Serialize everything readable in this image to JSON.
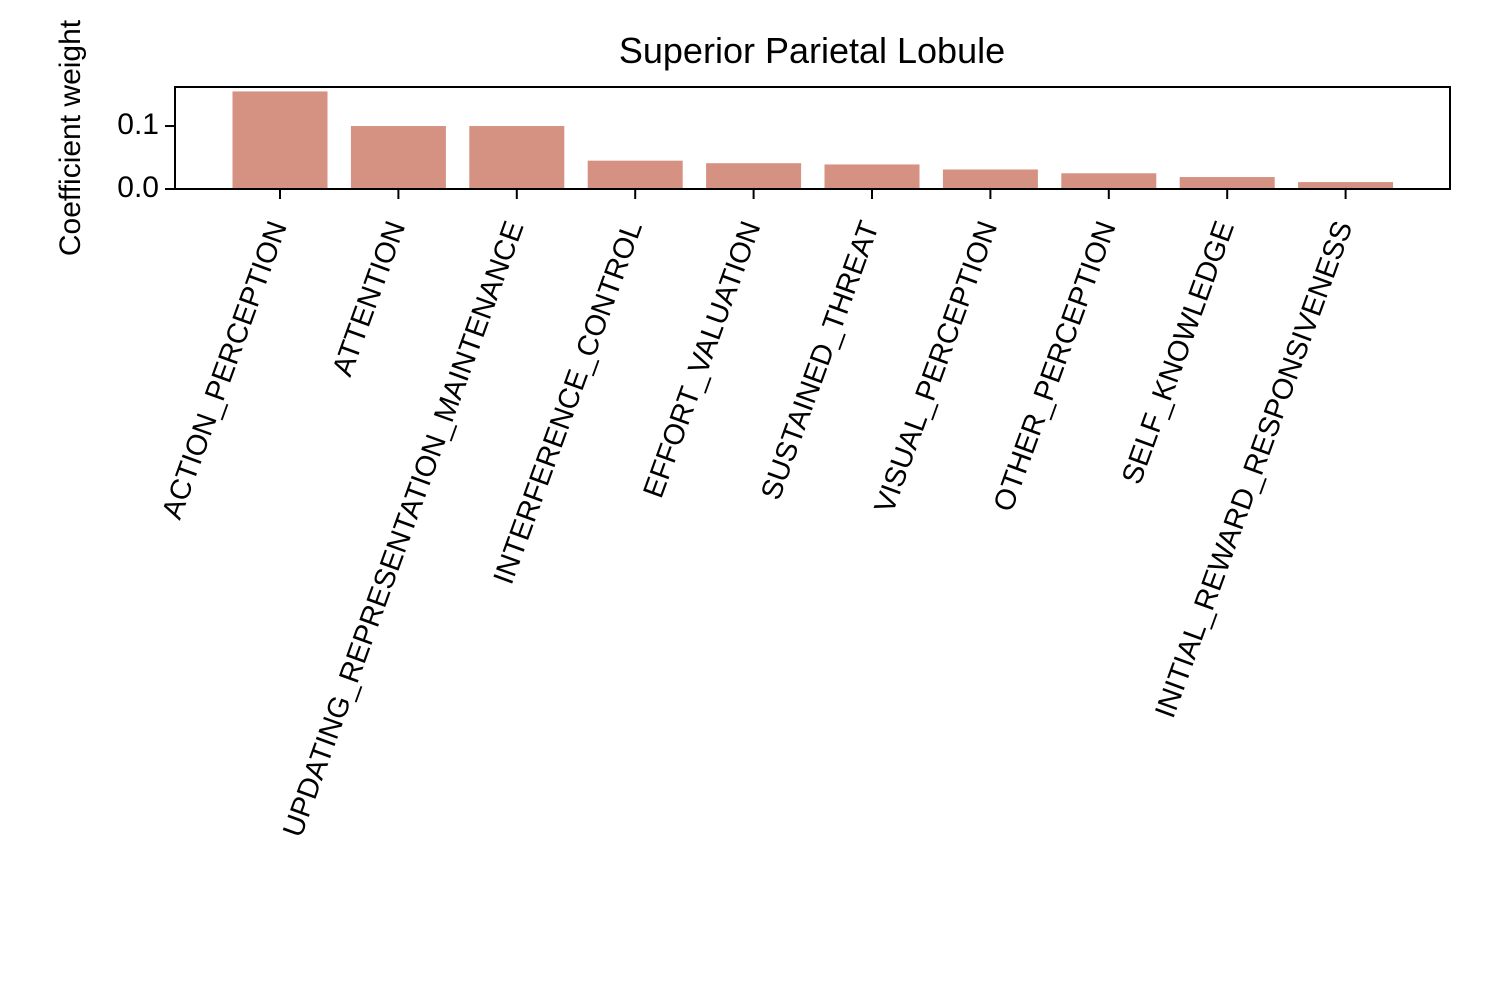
{
  "chart_data": {
    "type": "bar",
    "title": "Superior Parietal Lobule",
    "xlabel": "",
    "ylabel": "Coefficient weight",
    "categories": [
      "ACTION_PERCEPTION",
      "ATTENTION",
      "UPDATING_REPRESENTATION_MAINTENANCE",
      "INTERFERENCE_CONTROL",
      "EFFORT_VALUATION",
      "SUSTAINED_THREAT",
      "VISUAL_PERCEPTION",
      "OTHER_PERCEPTION",
      "SELF_KNOWLEDGE",
      "INITIAL_REWARD_RESPONSIVENESS"
    ],
    "values": [
      0.155,
      0.1,
      0.1,
      0.045,
      0.041,
      0.039,
      0.031,
      0.025,
      0.019,
      0.011
    ],
    "ylim": [
      0.0,
      0.162
    ],
    "yticks": [
      0.0,
      0.1
    ],
    "ytick_labels": [
      "0.0",
      "0.1"
    ],
    "grid": false,
    "bar_color": "#d59282"
  }
}
